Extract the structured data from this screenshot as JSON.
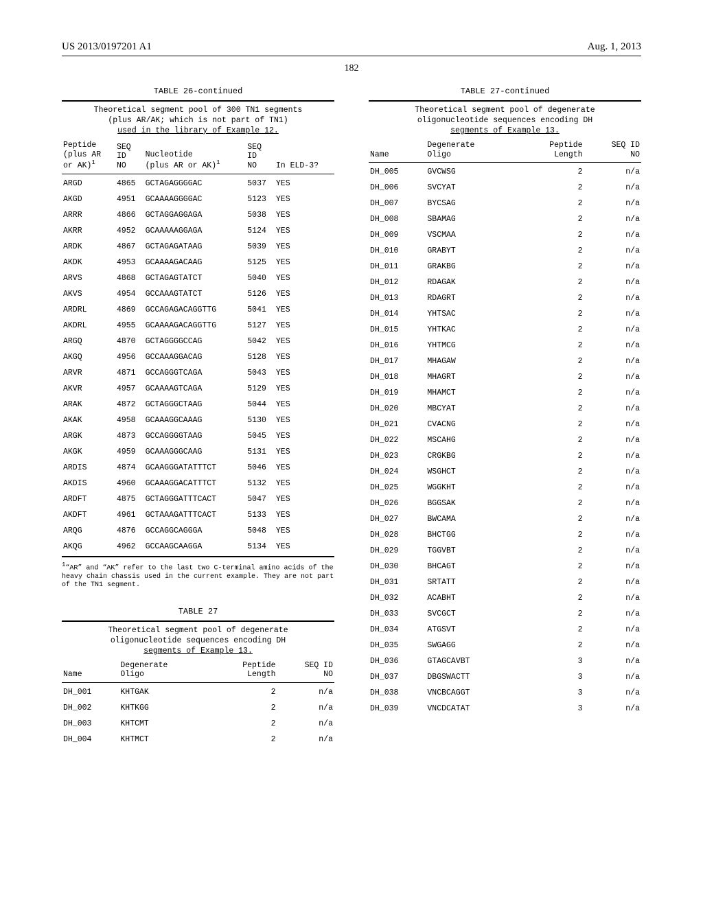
{
  "header": {
    "pub_no": "US 2013/0197201 A1",
    "date": "Aug. 1, 2013",
    "page": "182"
  },
  "table26": {
    "title": "TABLE 26-continued",
    "caption_l1": "Theoretical segment pool of 300 TN1 segments",
    "caption_l2": "(plus AR/AK; which is not part of TN1)",
    "caption_l3": "used in the library of Example 12.",
    "col_h": {
      "c1a": "Peptide",
      "c1b": "(plus AR",
      "c1c": "or AK)",
      "c2a": "SEQ",
      "c2b": "ID",
      "c2c": "NO",
      "c3a": "Nucleotide",
      "c3b": "(plus AR or AK)",
      "c4a": "SEQ",
      "c4b": "ID",
      "c4c": "NO",
      "c5": "In ELD-3?"
    },
    "rows": [
      {
        "p": "ARGD",
        "s1": "4865",
        "n": "GCTAGAGGGGAC",
        "s2": "5037",
        "e": "YES"
      },
      {
        "p": "AKGD",
        "s1": "4951",
        "n": "GCAAAAGGGGAC",
        "s2": "5123",
        "e": "YES"
      },
      {
        "p": "ARRR",
        "s1": "4866",
        "n": "GCTAGGAGGAGA",
        "s2": "5038",
        "e": "YES"
      },
      {
        "p": "AKRR",
        "s1": "4952",
        "n": "GCAAAAAGGAGA",
        "s2": "5124",
        "e": "YES"
      },
      {
        "p": "ARDK",
        "s1": "4867",
        "n": "GCTAGAGATAAG",
        "s2": "5039",
        "e": "YES"
      },
      {
        "p": "AKDK",
        "s1": "4953",
        "n": "GCAAAAGACAAG",
        "s2": "5125",
        "e": "YES"
      },
      {
        "p": "ARVS",
        "s1": "4868",
        "n": "GCTAGAGTATCT",
        "s2": "5040",
        "e": "YES"
      },
      {
        "p": "AKVS",
        "s1": "4954",
        "n": "GCCAAAGTATCT",
        "s2": "5126",
        "e": "YES"
      },
      {
        "p": "ARDRL",
        "s1": "4869",
        "n": "GCCAGAGACAGGTTG",
        "s2": "5041",
        "e": "YES"
      },
      {
        "p": "AKDRL",
        "s1": "4955",
        "n": "GCAAAAGACAGGTTG",
        "s2": "5127",
        "e": "YES"
      },
      {
        "p": "ARGQ",
        "s1": "4870",
        "n": "GCTAGGGGCCAG",
        "s2": "5042",
        "e": "YES"
      },
      {
        "p": "AKGQ",
        "s1": "4956",
        "n": "GCCAAAGGACAG",
        "s2": "5128",
        "e": "YES"
      },
      {
        "p": "ARVR",
        "s1": "4871",
        "n": "GCCAGGGTCAGA",
        "s2": "5043",
        "e": "YES"
      },
      {
        "p": "AKVR",
        "s1": "4957",
        "n": "GCAAAAGTCAGA",
        "s2": "5129",
        "e": "YES"
      },
      {
        "p": "ARAK",
        "s1": "4872",
        "n": "GCTAGGGCTAAG",
        "s2": "5044",
        "e": "YES"
      },
      {
        "p": "AKAK",
        "s1": "4958",
        "n": "GCAAAGGCAAAG",
        "s2": "5130",
        "e": "YES"
      },
      {
        "p": "ARGK",
        "s1": "4873",
        "n": "GCCAGGGGTAAG",
        "s2": "5045",
        "e": "YES"
      },
      {
        "p": "AKGK",
        "s1": "4959",
        "n": "GCAAAGGGCAAG",
        "s2": "5131",
        "e": "YES"
      },
      {
        "p": "ARDIS",
        "s1": "4874",
        "n": "GCAAGGGATATTTCT",
        "s2": "5046",
        "e": "YES"
      },
      {
        "p": "AKDIS",
        "s1": "4960",
        "n": "GCAAAGGACATTTCT",
        "s2": "5132",
        "e": "YES"
      },
      {
        "p": "ARDFT",
        "s1": "4875",
        "n": "GCTAGGGATTTCACT",
        "s2": "5047",
        "e": "YES"
      },
      {
        "p": "AKDFT",
        "s1": "4961",
        "n": "GCTAAAGATTTCACT",
        "s2": "5133",
        "e": "YES"
      },
      {
        "p": "ARQG",
        "s1": "4876",
        "n": "GCCAGGCAGGGA",
        "s2": "5048",
        "e": "YES"
      },
      {
        "p": "AKQG",
        "s1": "4962",
        "n": "GCCAAGCAAGGA",
        "s2": "5134",
        "e": "YES"
      }
    ],
    "footnote_sup": "1",
    "footnote": "“AR” and “AK” refer to the last two C-terminal amino acids of the heavy chain chassis used in the current example. They are not part of the TN1 segment."
  },
  "table27": {
    "title": "TABLE 27",
    "caption_l1": "Theoretical segment pool of degenerate",
    "caption_l2": "oligonucleotide sequences encoding DH",
    "caption_l3": "segments of Example 13.",
    "col_h": {
      "c1": "Name",
      "c2a": "Degenerate",
      "c2b": "Oligo",
      "c3a": "Peptide",
      "c3b": "Length",
      "c4a": "SEQ ID",
      "c4b": "NO"
    },
    "left_rows": [
      {
        "n": "DH_001",
        "o": "KHTGAK",
        "l": "2",
        "s": "n/a"
      },
      {
        "n": "DH_002",
        "o": "KHTKGG",
        "l": "2",
        "s": "n/a"
      },
      {
        "n": "DH_003",
        "o": "KHTCMT",
        "l": "2",
        "s": "n/a"
      },
      {
        "n": "DH_004",
        "o": "KHTMCT",
        "l": "2",
        "s": "n/a"
      }
    ]
  },
  "table27cont": {
    "title": "TABLE 27-continued",
    "caption_l1": "Theoretical segment pool of degenerate",
    "caption_l2": "oligonucleotide sequences encoding DH",
    "caption_l3": "segments of Example 13.",
    "rows": [
      {
        "n": "DH_005",
        "o": "GVCWSG",
        "l": "2",
        "s": "n/a"
      },
      {
        "n": "DH_006",
        "o": "SVCYAT",
        "l": "2",
        "s": "n/a"
      },
      {
        "n": "DH_007",
        "o": "BYCSAG",
        "l": "2",
        "s": "n/a"
      },
      {
        "n": "DH_008",
        "o": "SBAMAG",
        "l": "2",
        "s": "n/a"
      },
      {
        "n": "DH_009",
        "o": "VSCMAA",
        "l": "2",
        "s": "n/a"
      },
      {
        "n": "DH_010",
        "o": "GRABYT",
        "l": "2",
        "s": "n/a"
      },
      {
        "n": "DH_011",
        "o": "GRAKBG",
        "l": "2",
        "s": "n/a"
      },
      {
        "n": "DH_012",
        "o": "RDAGAK",
        "l": "2",
        "s": "n/a"
      },
      {
        "n": "DH_013",
        "o": "RDAGRT",
        "l": "2",
        "s": "n/a"
      },
      {
        "n": "DH_014",
        "o": "YHTSAC",
        "l": "2",
        "s": "n/a"
      },
      {
        "n": "DH_015",
        "o": "YHTKAC",
        "l": "2",
        "s": "n/a"
      },
      {
        "n": "DH_016",
        "o": "YHTMCG",
        "l": "2",
        "s": "n/a"
      },
      {
        "n": "DH_017",
        "o": "MHAGAW",
        "l": "2",
        "s": "n/a"
      },
      {
        "n": "DH_018",
        "o": "MHAGRT",
        "l": "2",
        "s": "n/a"
      },
      {
        "n": "DH_019",
        "o": "MHAMCT",
        "l": "2",
        "s": "n/a"
      },
      {
        "n": "DH_020",
        "o": "MBCYAT",
        "l": "2",
        "s": "n/a"
      },
      {
        "n": "DH_021",
        "o": "CVACNG",
        "l": "2",
        "s": "n/a"
      },
      {
        "n": "DH_022",
        "o": "MSCAHG",
        "l": "2",
        "s": "n/a"
      },
      {
        "n": "DH_023",
        "o": "CRGKBG",
        "l": "2",
        "s": "n/a"
      },
      {
        "n": "DH_024",
        "o": "WSGHCT",
        "l": "2",
        "s": "n/a"
      },
      {
        "n": "DH_025",
        "o": "WGGKHT",
        "l": "2",
        "s": "n/a"
      },
      {
        "n": "DH_026",
        "o": "BGGSAK",
        "l": "2",
        "s": "n/a"
      },
      {
        "n": "DH_027",
        "o": "BWCAMA",
        "l": "2",
        "s": "n/a"
      },
      {
        "n": "DH_028",
        "o": "BHCTGG",
        "l": "2",
        "s": "n/a"
      },
      {
        "n": "DH_029",
        "o": "TGGVBT",
        "l": "2",
        "s": "n/a"
      },
      {
        "n": "DH_030",
        "o": "BHCAGT",
        "l": "2",
        "s": "n/a"
      },
      {
        "n": "DH_031",
        "o": "SRTATT",
        "l": "2",
        "s": "n/a"
      },
      {
        "n": "DH_032",
        "o": "ACABHT",
        "l": "2",
        "s": "n/a"
      },
      {
        "n": "DH_033",
        "o": "SVCGCT",
        "l": "2",
        "s": "n/a"
      },
      {
        "n": "DH_034",
        "o": "ATGSVT",
        "l": "2",
        "s": "n/a"
      },
      {
        "n": "DH_035",
        "o": "SWGAGG",
        "l": "2",
        "s": "n/a"
      },
      {
        "n": "DH_036",
        "o": "GTAGCAVBT",
        "l": "3",
        "s": "n/a"
      },
      {
        "n": "DH_037",
        "o": "DBGSWACTT",
        "l": "3",
        "s": "n/a"
      },
      {
        "n": "DH_038",
        "o": "VNCBCAGGT",
        "l": "3",
        "s": "n/a"
      },
      {
        "n": "DH_039",
        "o": "VNCDCATAT",
        "l": "3",
        "s": "n/a"
      }
    ]
  }
}
